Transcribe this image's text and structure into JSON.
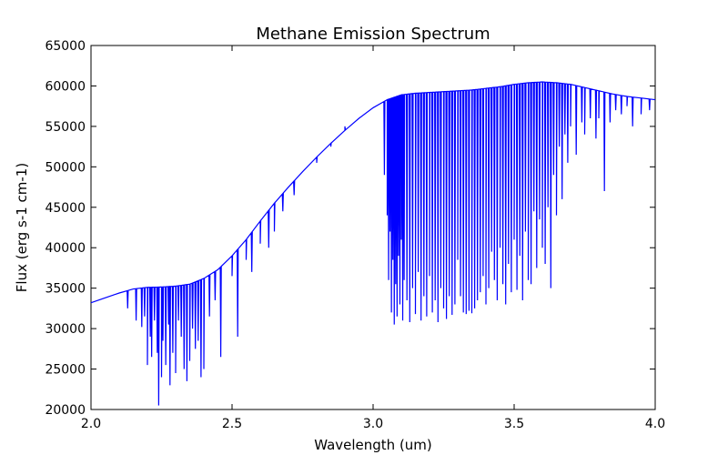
{
  "chart_data": {
    "type": "line",
    "title": "Methane Emission Spectrum",
    "xlabel": "Wavelength  (um)",
    "ylabel": "Flux  (erg s-1 cm-1)",
    "xlim": [
      2.0,
      4.0
    ],
    "ylim": [
      20000,
      65000
    ],
    "x_ticks": [
      2.0,
      2.5,
      3.0,
      3.5,
      4.0
    ],
    "x_tick_labels": [
      "2.0",
      "2.5",
      "3.0",
      "3.5",
      "4.0"
    ],
    "y_ticks": [
      20000,
      25000,
      30000,
      35000,
      40000,
      45000,
      50000,
      55000,
      60000,
      65000
    ],
    "y_tick_labels": [
      "20000",
      "25000",
      "30000",
      "35000",
      "40000",
      "45000",
      "50000",
      "55000",
      "60000",
      "65000"
    ],
    "grid": false,
    "line_color": "#0000ff",
    "series": [
      {
        "continuum": {
          "x": [
            2.0,
            2.05,
            2.1,
            2.15,
            2.2,
            2.25,
            2.3,
            2.35,
            2.4,
            2.45,
            2.5,
            2.55,
            2.6,
            2.65,
            2.7,
            2.75,
            2.8,
            2.85,
            2.9,
            2.95,
            3.0,
            3.05,
            3.1,
            3.15,
            3.2,
            3.25,
            3.3,
            3.35,
            3.4,
            3.45,
            3.5,
            3.55,
            3.6,
            3.65,
            3.7,
            3.75,
            3.8,
            3.85,
            3.9,
            3.95,
            4.0
          ],
          "y": [
            33200,
            33800,
            34400,
            34900,
            35100,
            35150,
            35250,
            35500,
            36200,
            37300,
            39000,
            41000,
            43300,
            45500,
            47500,
            49400,
            51200,
            52900,
            54500,
            56000,
            57300,
            58300,
            58900,
            59100,
            59200,
            59300,
            59400,
            59500,
            59700,
            59900,
            60200,
            60400,
            60500,
            60400,
            60200,
            59800,
            59400,
            59000,
            58700,
            58500,
            58300
          ]
        },
        "absorption_lines": [
          [
            2.13,
            32500
          ],
          [
            2.16,
            31000
          ],
          [
            2.18,
            30200
          ],
          [
            2.19,
            31500
          ],
          [
            2.2,
            25500
          ],
          [
            2.21,
            29000
          ],
          [
            2.215,
            26500
          ],
          [
            2.225,
            31000
          ],
          [
            2.235,
            27000
          ],
          [
            2.24,
            20500
          ],
          [
            2.25,
            24000
          ],
          [
            2.255,
            28500
          ],
          [
            2.265,
            25500
          ],
          [
            2.275,
            30500
          ],
          [
            2.28,
            23000
          ],
          [
            2.29,
            27000
          ],
          [
            2.3,
            24500
          ],
          [
            2.31,
            31000
          ],
          [
            2.32,
            29000
          ],
          [
            2.33,
            25000
          ],
          [
            2.34,
            23500
          ],
          [
            2.35,
            26000
          ],
          [
            2.36,
            30000
          ],
          [
            2.37,
            27500
          ],
          [
            2.38,
            28500
          ],
          [
            2.39,
            24000
          ],
          [
            2.4,
            25000
          ],
          [
            2.42,
            31500
          ],
          [
            2.44,
            33500
          ],
          [
            2.46,
            26500
          ],
          [
            2.5,
            36500
          ],
          [
            2.52,
            29000
          ],
          [
            2.55,
            38500
          ],
          [
            2.57,
            37000
          ],
          [
            2.6,
            40500
          ],
          [
            2.63,
            40000
          ],
          [
            2.65,
            42000
          ],
          [
            2.68,
            44500
          ],
          [
            2.72,
            46500
          ],
          [
            2.8,
            50500
          ],
          [
            2.85,
            52500
          ],
          [
            2.9,
            55000
          ],
          [
            3.04,
            49000
          ],
          [
            3.05,
            44000
          ],
          [
            3.055,
            36000
          ],
          [
            3.06,
            42000
          ],
          [
            3.065,
            32000
          ],
          [
            3.07,
            38500
          ],
          [
            3.075,
            30500
          ],
          [
            3.08,
            35500
          ],
          [
            3.085,
            31500
          ],
          [
            3.09,
            39000
          ],
          [
            3.095,
            33000
          ],
          [
            3.1,
            41000
          ],
          [
            3.105,
            31000
          ],
          [
            3.11,
            36000
          ],
          [
            3.12,
            33500
          ],
          [
            3.13,
            30800
          ],
          [
            3.14,
            35000
          ],
          [
            3.15,
            31800
          ],
          [
            3.16,
            37000
          ],
          [
            3.17,
            31000
          ],
          [
            3.18,
            34000
          ],
          [
            3.19,
            31500
          ],
          [
            3.2,
            36500
          ],
          [
            3.21,
            32000
          ],
          [
            3.22,
            33500
          ],
          [
            3.23,
            30800
          ],
          [
            3.24,
            35000
          ],
          [
            3.25,
            32500
          ],
          [
            3.26,
            31200
          ],
          [
            3.27,
            34000
          ],
          [
            3.28,
            31700
          ],
          [
            3.29,
            33000
          ],
          [
            3.3,
            38500
          ],
          [
            3.31,
            34000
          ],
          [
            3.32,
            32000
          ],
          [
            3.33,
            31800
          ],
          [
            3.34,
            32200
          ],
          [
            3.35,
            31900
          ],
          [
            3.36,
            32500
          ],
          [
            3.37,
            33500
          ],
          [
            3.38,
            34500
          ],
          [
            3.39,
            36500
          ],
          [
            3.4,
            33000
          ],
          [
            3.41,
            35000
          ],
          [
            3.42,
            39500
          ],
          [
            3.43,
            36000
          ],
          [
            3.44,
            33500
          ],
          [
            3.45,
            40000
          ],
          [
            3.46,
            35500
          ],
          [
            3.47,
            33000
          ],
          [
            3.48,
            38000
          ],
          [
            3.49,
            34500
          ],
          [
            3.5,
            41000
          ],
          [
            3.51,
            34800
          ],
          [
            3.52,
            39000
          ],
          [
            3.53,
            33500
          ],
          [
            3.54,
            42000
          ],
          [
            3.55,
            36000
          ],
          [
            3.56,
            35500
          ],
          [
            3.57,
            44500
          ],
          [
            3.58,
            37500
          ],
          [
            3.59,
            43500
          ],
          [
            3.6,
            40000
          ],
          [
            3.61,
            38000
          ],
          [
            3.62,
            45000
          ],
          [
            3.63,
            35000
          ],
          [
            3.64,
            49000
          ],
          [
            3.65,
            44000
          ],
          [
            3.66,
            52500
          ],
          [
            3.67,
            46000
          ],
          [
            3.68,
            54000
          ],
          [
            3.69,
            50500
          ],
          [
            3.7,
            55000
          ],
          [
            3.72,
            51500
          ],
          [
            3.74,
            55500
          ],
          [
            3.75,
            54000
          ],
          [
            3.77,
            56000
          ],
          [
            3.79,
            53500
          ],
          [
            3.8,
            56000
          ],
          [
            3.82,
            47000
          ],
          [
            3.84,
            55500
          ],
          [
            3.86,
            57000
          ],
          [
            3.88,
            56500
          ],
          [
            3.9,
            57500
          ],
          [
            3.92,
            55000
          ],
          [
            3.95,
            56500
          ],
          [
            3.98,
            57000
          ]
        ]
      }
    ]
  }
}
